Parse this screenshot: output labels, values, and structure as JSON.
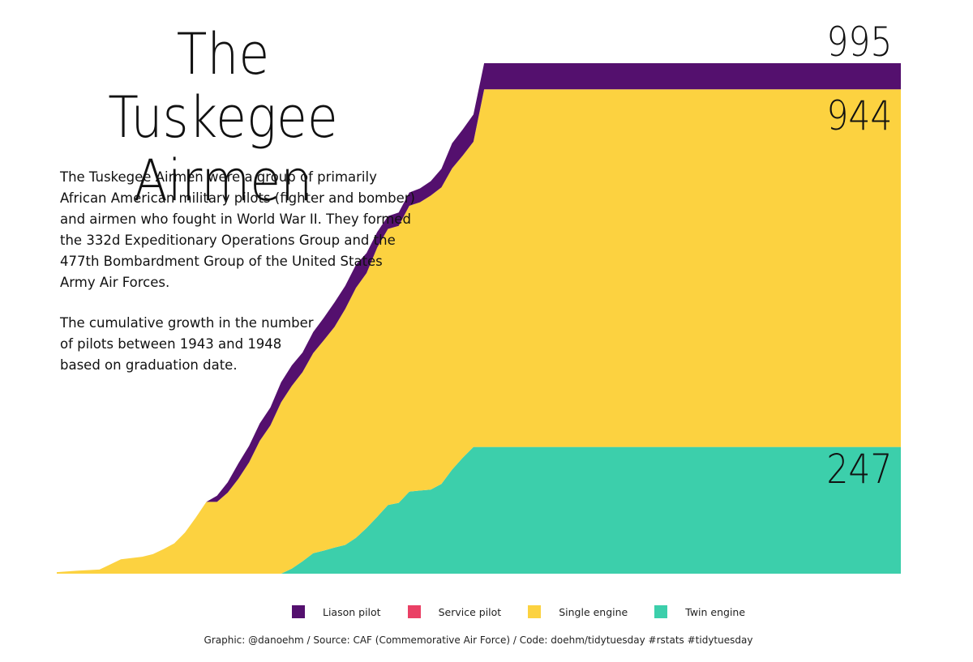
{
  "title": "The Tuskegee Airmen",
  "description": [
    "The Tuskegee Airmen were a group of primarily African American military pilots (fighter and bomber) and airmen who fought in World War II. They formed the 332d Expeditionary Operations Group and the 477th Bombardment Group of the United States Army Air Forces.",
    "The cumulative growth in the number of pilots between 1943 and 1948 based on graduation date."
  ],
  "caption": "Graphic: @danoehm / Source: CAF (Commemorative Air Force) / Code: doehm/tidytuesday #rstats #tidytuesday",
  "end_labels": {
    "total": "995",
    "single_plus_twin": "944",
    "twin": "247"
  },
  "colors": {
    "liaison": "#54106e",
    "service": "#ea4065",
    "single": "#fcd240",
    "twin": "#3ccfab"
  },
  "chart_data": {
    "type": "area",
    "stacked": true,
    "title": "The Tuskegee Airmen",
    "xlabel": "",
    "ylabel": "",
    "grid": false,
    "legend_position": "bottom",
    "x_range": [
      "1942-03",
      "1948-10"
    ],
    "y_range": [
      0,
      995
    ],
    "x": [
      "1942-03",
      "1942-05",
      "1942-07",
      "1942-08",
      "1942-09",
      "1942-11",
      "1942-12",
      "1943-01",
      "1943-02",
      "1943-03",
      "1943-04",
      "1943-05",
      "1943-06",
      "1943-07",
      "1943-08",
      "1943-09",
      "1943-10",
      "1943-11",
      "1943-12",
      "1944-01",
      "1944-02",
      "1944-03",
      "1944-04",
      "1944-05",
      "1944-06",
      "1944-07",
      "1944-08",
      "1944-09",
      "1944-10",
      "1944-11",
      "1944-12",
      "1945-01",
      "1945-02",
      "1945-03",
      "1945-04",
      "1945-05",
      "1945-06",
      "1945-07",
      "1945-08",
      "1945-09",
      "1945-10",
      "1945-11",
      "1946-01",
      "1946-06",
      "1947-06",
      "1948-06",
      "1948-10"
    ],
    "series": [
      {
        "name": "Twin engine",
        "values": [
          0,
          0,
          0,
          0,
          0,
          0,
          0,
          0,
          0,
          0,
          0,
          0,
          0,
          0,
          0,
          0,
          0,
          0,
          0,
          10,
          24,
          40,
          45,
          51,
          56,
          70,
          89,
          111,
          134,
          138,
          160,
          162,
          164,
          175,
          203,
          226,
          247,
          247,
          247,
          247,
          247,
          247,
          247,
          247,
          247,
          247,
          247
        ]
      },
      {
        "name": "Single engine",
        "values": [
          3,
          6,
          8,
          18,
          28,
          33,
          38,
          48,
          59,
          80,
          109,
          140,
          140,
          158,
          185,
          217,
          259,
          289,
          334,
          356,
          369,
          390,
          410,
          430,
          460,
          487,
          497,
          525,
          538,
          540,
          557,
          562,
          573,
          578,
          587,
          589,
          595,
          697,
          697,
          697,
          697,
          697,
          697,
          697,
          697,
          697,
          697
        ]
      },
      {
        "name": "Service pilot",
        "values": [
          0,
          0,
          0,
          0,
          0,
          0,
          0,
          0,
          0,
          0,
          0,
          0,
          0,
          0,
          0,
          0,
          0,
          0,
          0,
          0,
          0,
          0,
          0,
          0,
          0,
          0,
          0,
          0,
          0,
          0,
          0,
          0,
          0,
          0,
          0,
          0,
          0,
          0,
          0,
          0,
          0,
          0,
          0,
          0,
          0,
          0,
          0
        ]
      },
      {
        "name": "Liason pilot",
        "values": [
          0,
          0,
          0,
          0,
          0,
          0,
          0,
          0,
          0,
          0,
          0,
          0,
          12,
          20,
          30,
          32,
          34,
          35,
          39,
          40,
          38,
          41,
          44,
          48,
          45,
          45,
          39,
          30,
          25,
          26,
          26,
          27,
          28,
          36,
          49,
          51,
          53,
          51,
          51,
          51,
          51,
          51,
          51,
          51,
          51,
          51,
          51
        ]
      }
    ]
  },
  "legend": [
    {
      "label": "Liason pilot",
      "color_key": "liaison"
    },
    {
      "label": "Service pilot",
      "color_key": "service"
    },
    {
      "label": "Single engine",
      "color_key": "single"
    },
    {
      "label": "Twin engine",
      "color_key": "twin"
    }
  ]
}
